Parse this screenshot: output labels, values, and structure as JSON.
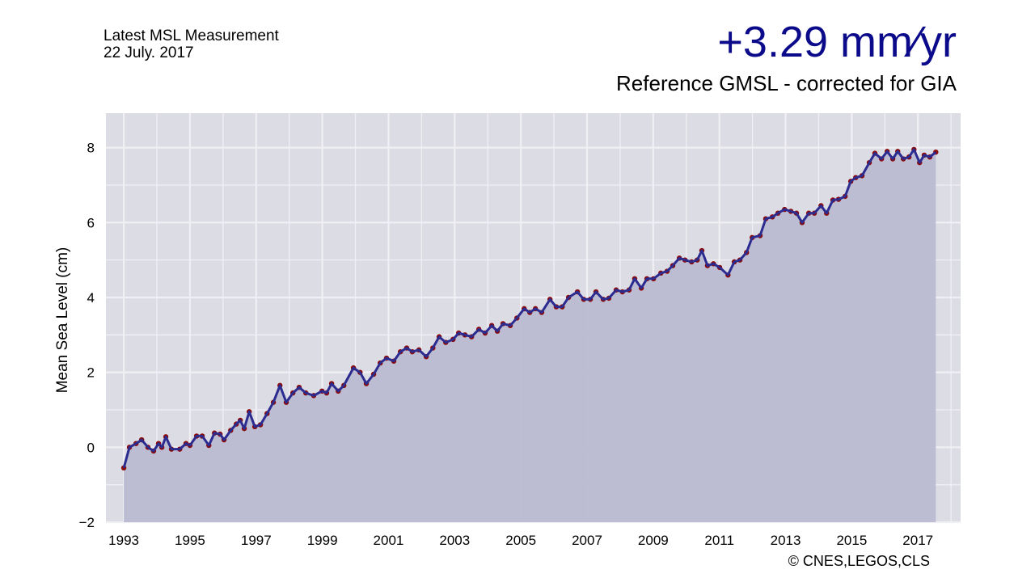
{
  "header": {
    "line1": "Latest MSL Measurement",
    "line2": "22 July. 2017",
    "rate": "+3.29 mm∕yr",
    "subtitle": "Reference GMSL - corrected for GIA",
    "copyright": "© CNES,LEGOS,CLS"
  },
  "colors": {
    "background": "#dcdce4",
    "fill": "#b9b9d1",
    "line": "#2b2b90",
    "dots": "#8b0a0a",
    "grid": "#f0f0f4"
  },
  "chart_data": {
    "type": "area",
    "title": "Reference GMSL - corrected for GIA",
    "xlabel": "",
    "ylabel": "Mean Sea Level (cm)",
    "xlim": [
      1992.46,
      2018.29
    ],
    "ylim": [
      -2,
      8.92
    ],
    "grid": true,
    "xticks": [
      1993,
      1995,
      1997,
      1999,
      2001,
      2003,
      2005,
      2007,
      2009,
      2011,
      2013,
      2015,
      2017
    ],
    "xtick_labels": [
      "1993",
      "1995",
      "1997",
      "1999",
      "2001",
      "2003",
      "2005",
      "2007",
      "2009",
      "2011",
      "2013",
      "2015",
      "2017"
    ],
    "yticks": [
      -2,
      0,
      2,
      4,
      6,
      8
    ],
    "ytick_labels": [
      "−2",
      "0",
      "2",
      "4",
      "6",
      "8"
    ],
    "series": [
      {
        "name": "GMSL",
        "points": [
          [
            1993.0,
            -0.55
          ],
          [
            1993.17,
            0.0
          ],
          [
            1993.37,
            0.1
          ],
          [
            1993.54,
            0.2
          ],
          [
            1993.73,
            0.0
          ],
          [
            1993.9,
            -0.1
          ],
          [
            1994.05,
            0.1
          ],
          [
            1994.15,
            0.0
          ],
          [
            1994.27,
            0.28
          ],
          [
            1994.44,
            -0.05
          ],
          [
            1994.69,
            -0.05
          ],
          [
            1994.88,
            0.1
          ],
          [
            1995.0,
            0.05
          ],
          [
            1995.2,
            0.3
          ],
          [
            1995.37,
            0.3
          ],
          [
            1995.57,
            0.05
          ],
          [
            1995.74,
            0.38
          ],
          [
            1995.91,
            0.35
          ],
          [
            1996.03,
            0.2
          ],
          [
            1996.23,
            0.45
          ],
          [
            1996.4,
            0.62
          ],
          [
            1996.52,
            0.72
          ],
          [
            1996.64,
            0.5
          ],
          [
            1996.79,
            0.95
          ],
          [
            1996.96,
            0.55
          ],
          [
            1997.13,
            0.6
          ],
          [
            1997.33,
            0.9
          ],
          [
            1997.52,
            1.2
          ],
          [
            1997.72,
            1.65
          ],
          [
            1997.91,
            1.2
          ],
          [
            1998.11,
            1.45
          ],
          [
            1998.3,
            1.6
          ],
          [
            1998.5,
            1.45
          ],
          [
            1998.74,
            1.38
          ],
          [
            1998.99,
            1.5
          ],
          [
            1999.13,
            1.45
          ],
          [
            1999.28,
            1.7
          ],
          [
            1999.48,
            1.5
          ],
          [
            1999.65,
            1.65
          ],
          [
            1999.94,
            2.12
          ],
          [
            2000.14,
            2.0
          ],
          [
            2000.33,
            1.7
          ],
          [
            2000.55,
            1.95
          ],
          [
            2000.75,
            2.25
          ],
          [
            2000.94,
            2.38
          ],
          [
            2001.16,
            2.3
          ],
          [
            2001.36,
            2.55
          ],
          [
            2001.55,
            2.65
          ],
          [
            2001.72,
            2.55
          ],
          [
            2001.92,
            2.6
          ],
          [
            2002.14,
            2.42
          ],
          [
            2002.34,
            2.65
          ],
          [
            2002.53,
            2.95
          ],
          [
            2002.73,
            2.8
          ],
          [
            2002.95,
            2.88
          ],
          [
            2003.12,
            3.05
          ],
          [
            2003.31,
            3.0
          ],
          [
            2003.51,
            2.95
          ],
          [
            2003.73,
            3.15
          ],
          [
            2003.92,
            3.05
          ],
          [
            2004.12,
            3.25
          ],
          [
            2004.29,
            3.1
          ],
          [
            2004.46,
            3.3
          ],
          [
            2004.68,
            3.25
          ],
          [
            2004.88,
            3.45
          ],
          [
            2005.1,
            3.7
          ],
          [
            2005.27,
            3.6
          ],
          [
            2005.44,
            3.7
          ],
          [
            2005.63,
            3.6
          ],
          [
            2005.88,
            3.95
          ],
          [
            2006.07,
            3.75
          ],
          [
            2006.25,
            3.75
          ],
          [
            2006.44,
            4.0
          ],
          [
            2006.71,
            4.15
          ],
          [
            2006.9,
            3.95
          ],
          [
            2007.1,
            3.95
          ],
          [
            2007.27,
            4.15
          ],
          [
            2007.49,
            3.95
          ],
          [
            2007.66,
            3.98
          ],
          [
            2007.88,
            4.2
          ],
          [
            2008.07,
            4.15
          ],
          [
            2008.27,
            4.2
          ],
          [
            2008.44,
            4.5
          ],
          [
            2008.64,
            4.25
          ],
          [
            2008.81,
            4.5
          ],
          [
            2009.01,
            4.5
          ],
          [
            2009.23,
            4.65
          ],
          [
            2009.42,
            4.7
          ],
          [
            2009.59,
            4.85
          ],
          [
            2009.79,
            5.05
          ],
          [
            2009.96,
            5.0
          ],
          [
            2010.16,
            4.95
          ],
          [
            2010.33,
            5.0
          ],
          [
            2010.47,
            5.25
          ],
          [
            2010.64,
            4.85
          ],
          [
            2010.82,
            4.9
          ],
          [
            2011.01,
            4.8
          ],
          [
            2011.26,
            4.6
          ],
          [
            2011.45,
            4.95
          ],
          [
            2011.62,
            5.0
          ],
          [
            2011.82,
            5.2
          ],
          [
            2011.99,
            5.6
          ],
          [
            2012.23,
            5.65
          ],
          [
            2012.4,
            6.1
          ],
          [
            2012.6,
            6.15
          ],
          [
            2012.77,
            6.25
          ],
          [
            2012.97,
            6.35
          ],
          [
            2013.16,
            6.3
          ],
          [
            2013.33,
            6.25
          ],
          [
            2013.5,
            6.0
          ],
          [
            2013.7,
            6.25
          ],
          [
            2013.87,
            6.25
          ],
          [
            2014.07,
            6.45
          ],
          [
            2014.24,
            6.25
          ],
          [
            2014.43,
            6.6
          ],
          [
            2014.6,
            6.62
          ],
          [
            2014.8,
            6.7
          ],
          [
            2014.97,
            7.1
          ],
          [
            2015.12,
            7.2
          ],
          [
            2015.31,
            7.25
          ],
          [
            2015.53,
            7.6
          ],
          [
            2015.7,
            7.85
          ],
          [
            2015.9,
            7.7
          ],
          [
            2016.07,
            7.9
          ],
          [
            2016.24,
            7.7
          ],
          [
            2016.39,
            7.9
          ],
          [
            2016.56,
            7.7
          ],
          [
            2016.73,
            7.75
          ],
          [
            2016.88,
            7.95
          ],
          [
            2017.05,
            7.6
          ],
          [
            2017.19,
            7.8
          ],
          [
            2017.36,
            7.75
          ],
          [
            2017.54,
            7.88
          ]
        ]
      }
    ]
  }
}
